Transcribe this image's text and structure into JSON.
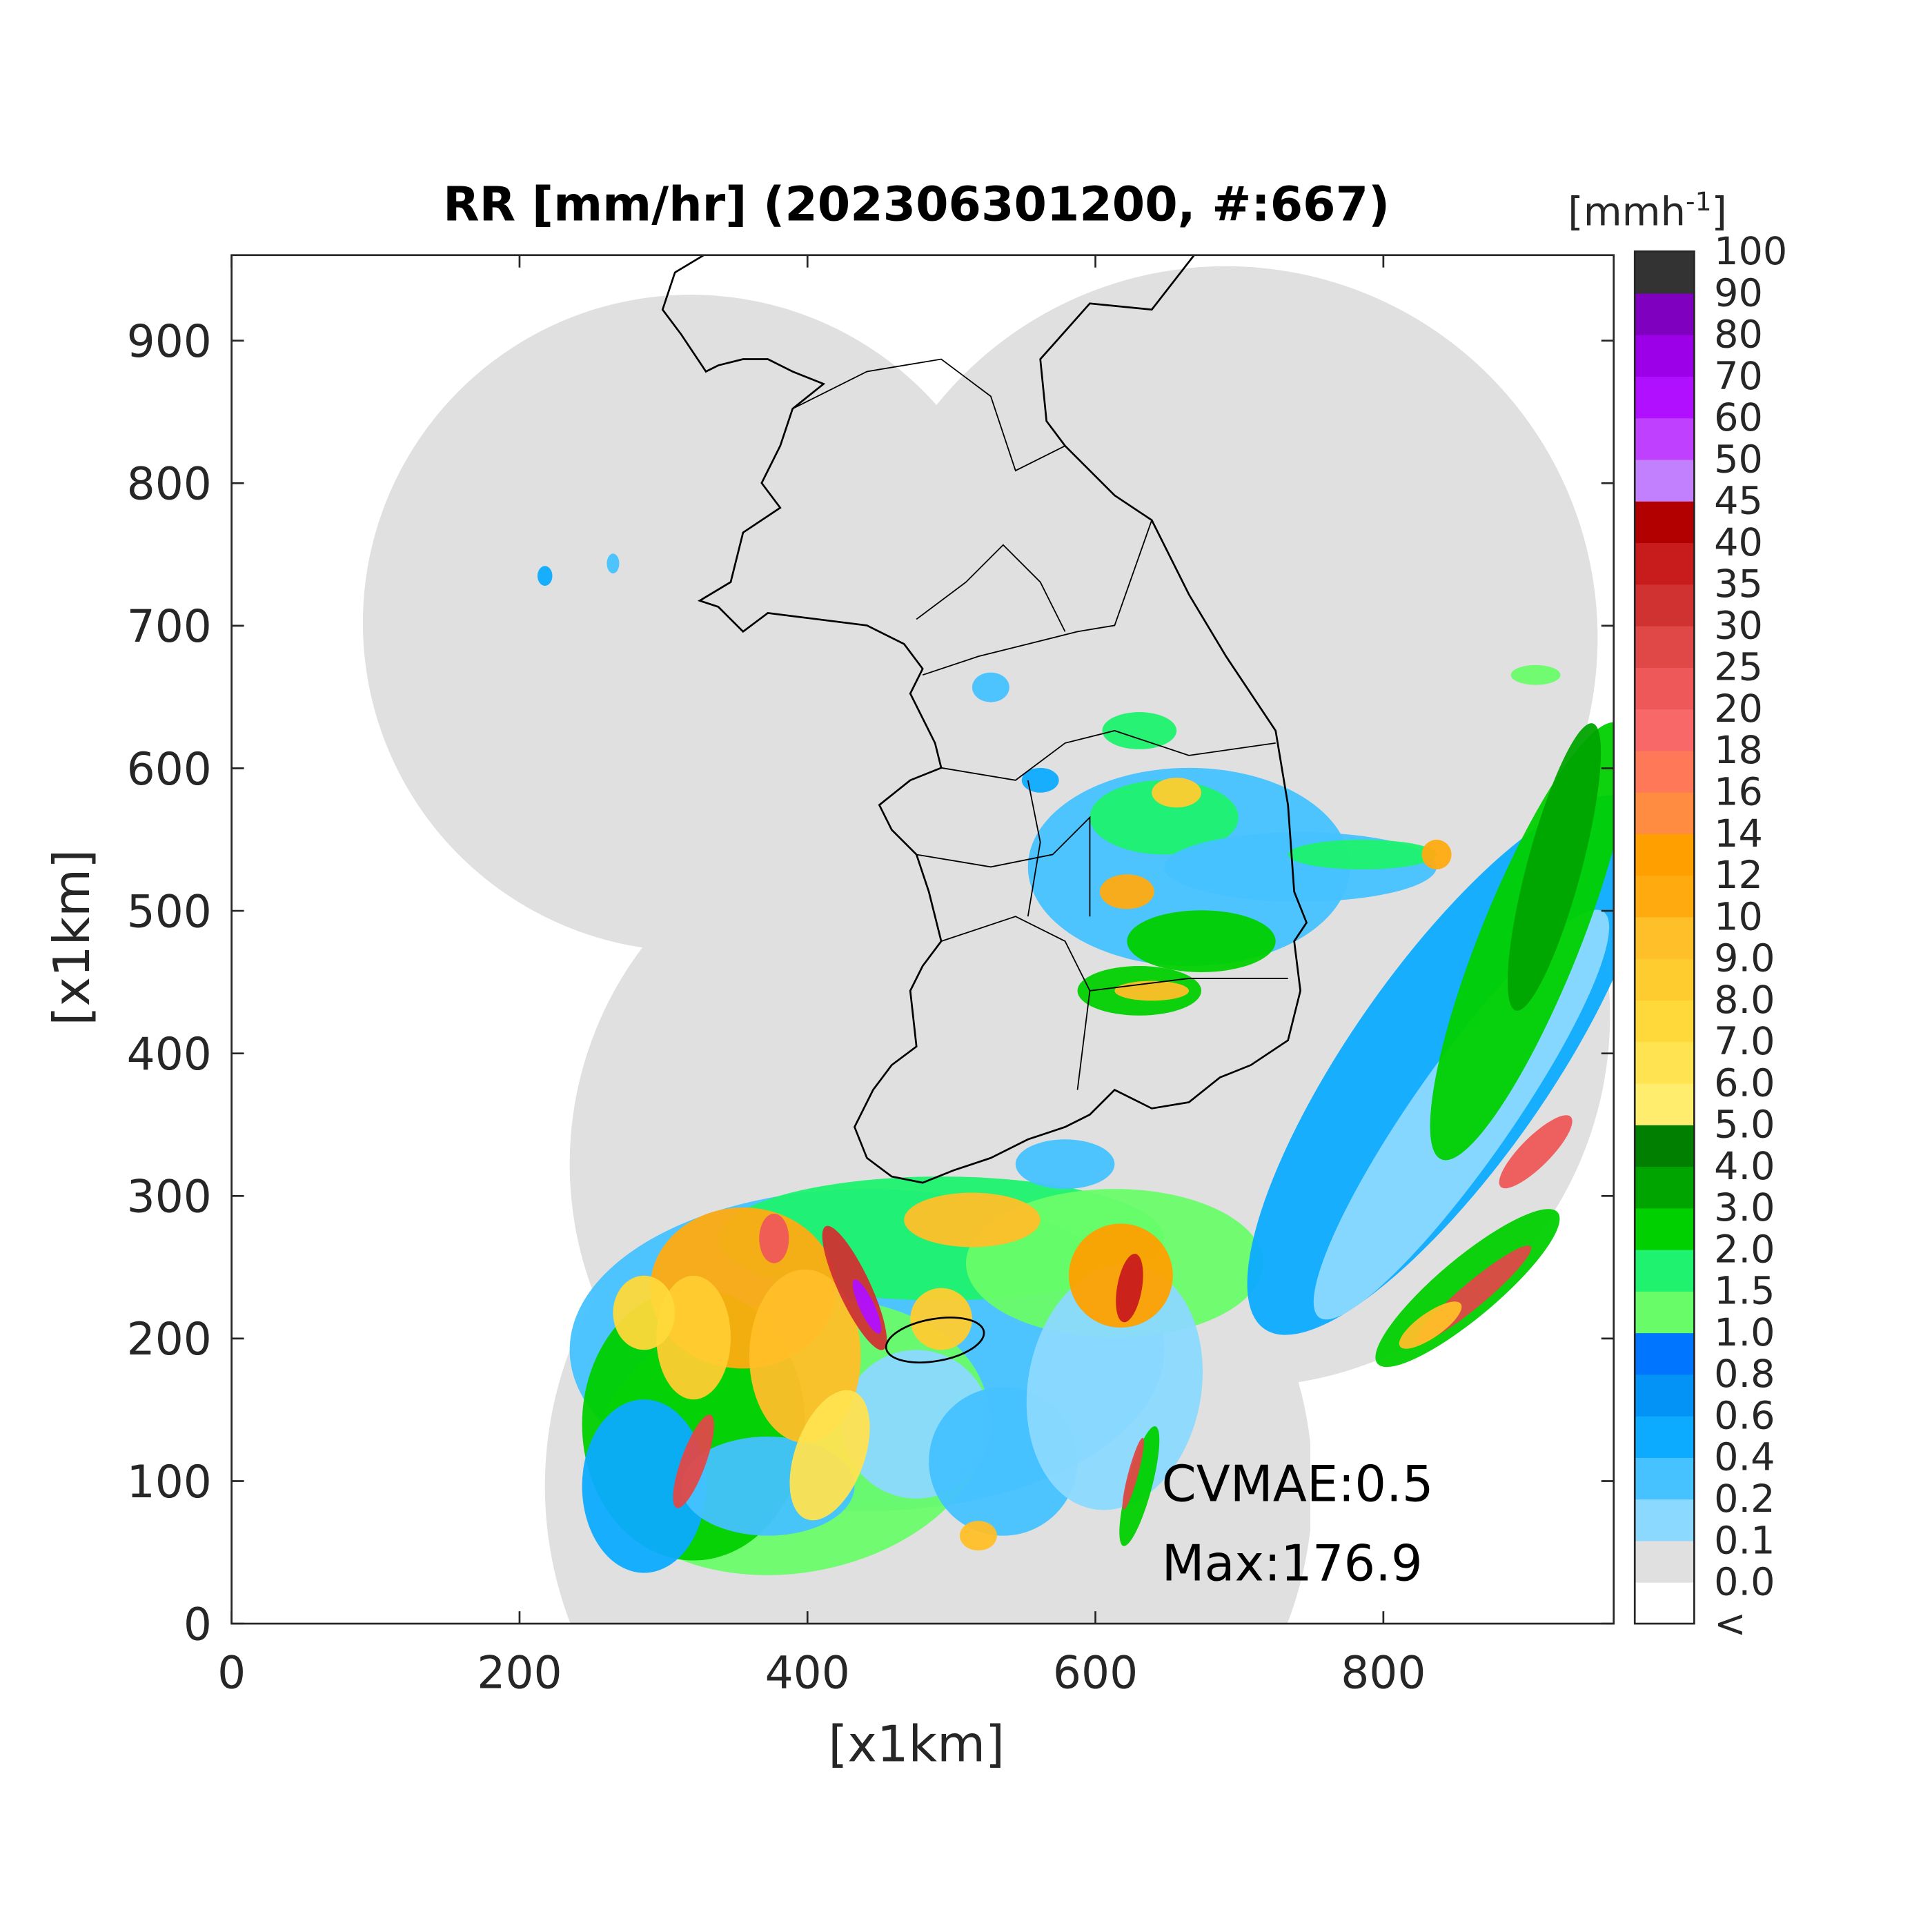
{
  "chart_data": {
    "type": "heatmap",
    "title": "RR [mm/hr] (202306301200, #:667)",
    "x_label": "[x1km]",
    "y_label": "[x1km]",
    "xlim": [
      0,
      960
    ],
    "ylim": [
      0,
      960
    ],
    "xticks": [
      0,
      200,
      400,
      600,
      800
    ],
    "yticks": [
      0,
      100,
      200,
      300,
      400,
      500,
      600,
      700,
      800,
      900
    ],
    "annotations": [
      "CVMAE:0.5",
      "Max:176.9"
    ],
    "colorbar": {
      "unit": "[mmh",
      "unit_exponent": "-1",
      "unit_close": "]",
      "labels": [
        "<",
        "0.0",
        "0.1",
        "0.2",
        "0.4",
        "0.6",
        "0.8",
        "1.0",
        "1.5",
        "2.0",
        "3.0",
        "4.0",
        "5.0",
        "6.0",
        "7.0",
        "8.0",
        "9.0",
        "10",
        "12",
        "14",
        "16",
        "18",
        "20",
        "25",
        "30",
        "35",
        "40",
        "45",
        "50",
        "60",
        "70",
        "80",
        "90",
        "100"
      ],
      "colors": [
        "#ffffff",
        "#e0e0e0",
        "#8bd9ff",
        "#45c2ff",
        "#0cabff",
        "#0392f5",
        "#0075ff",
        "#69fc69",
        "#1ef26e",
        "#00d000",
        "#00a400",
        "#007f00",
        "#ffee6e",
        "#ffe350",
        "#ffd83a",
        "#ffcc30",
        "#ffbf28",
        "#ffab10",
        "#ffa000",
        "#ff8c40",
        "#ff7858",
        "#f86868",
        "#ee5858",
        "#e04848",
        "#d03232",
        "#c81c1c",
        "#b20000",
        "#c280ff",
        "#c040ff",
        "#b010ff",
        "#9b00e8",
        "#8000c0",
        "#333333"
      ]
    }
  }
}
